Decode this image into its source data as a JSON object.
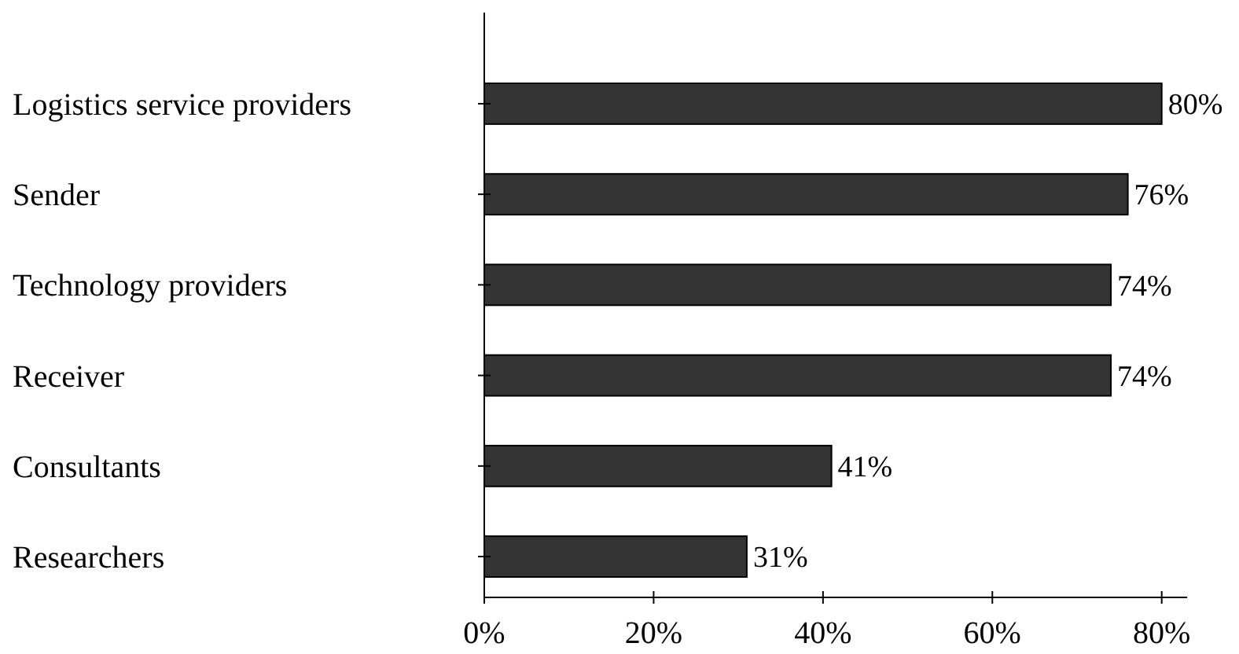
{
  "chart_data": {
    "type": "bar",
    "orientation": "horizontal",
    "categories": [
      "Logistics service providers",
      "Sender",
      "Technology providers",
      "Receiver",
      "Consultants",
      "Researchers"
    ],
    "values": [
      80,
      76,
      74,
      74,
      41,
      31
    ],
    "value_labels": [
      "80%",
      "76%",
      "74%",
      "74%",
      "41%",
      "31%"
    ],
    "color": "#333333",
    "xlim": [
      0,
      83
    ],
    "xticks": [
      {
        "value": 0,
        "label": "0%"
      },
      {
        "value": 20,
        "label": "20%"
      },
      {
        "value": 40,
        "label": "40%"
      },
      {
        "value": 60,
        "label": "60%"
      },
      {
        "value": 80,
        "label": "80%"
      }
    ],
    "grid": false
  }
}
